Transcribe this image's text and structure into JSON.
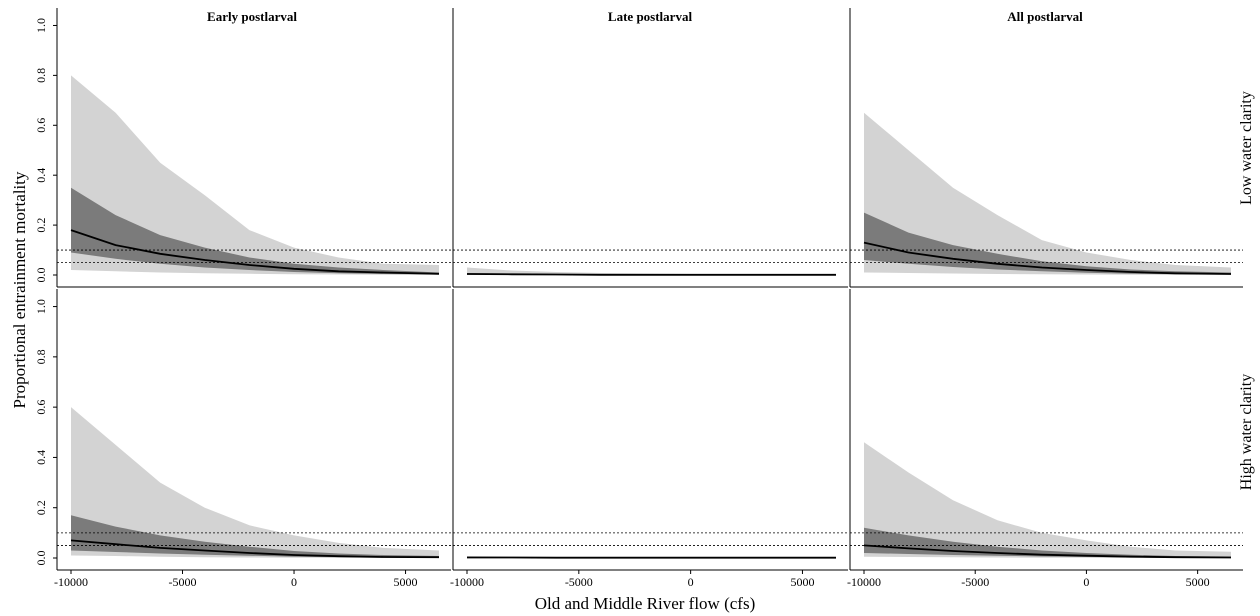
{
  "chart_data": {
    "type": "area",
    "panel_columns": [
      "Early postlarval",
      "Late postlarval",
      "All postlarval"
    ],
    "panel_rows": [
      "Low water clarity",
      "High water clarity"
    ],
    "xlabel": "Old and Middle River flow (cfs)",
    "ylabel": "Proportional entrainment mortality",
    "xlim": [
      -10000,
      6500
    ],
    "ylim": [
      0,
      1.0
    ],
    "x_ticks": [
      "-10000",
      "-5000",
      "0",
      "5000"
    ],
    "y_ticks": [
      "0.0",
      "0.2",
      "0.4",
      "0.6",
      "0.8",
      "1.0"
    ],
    "reference_lines": [
      0.05,
      0.1
    ],
    "colors": {
      "outer_band": "#d3d3d3",
      "inner_band": "#7b7b7b",
      "median": "#000000",
      "reference": "#000000"
    },
    "x": [
      -10000,
      -8000,
      -6000,
      -4000,
      -2000,
      0,
      2000,
      4000,
      6500
    ],
    "panels": [
      {
        "row": 0,
        "col": 0,
        "median": [
          0.18,
          0.12,
          0.085,
          0.06,
          0.04,
          0.025,
          0.015,
          0.01,
          0.005
        ],
        "inner_lo": [
          0.09,
          0.065,
          0.045,
          0.03,
          0.02,
          0.012,
          0.007,
          0.004,
          0.002
        ],
        "inner_hi": [
          0.35,
          0.24,
          0.16,
          0.11,
          0.07,
          0.045,
          0.03,
          0.02,
          0.01
        ],
        "outer_lo": [
          0.02,
          0.015,
          0.01,
          0.007,
          0.005,
          0.003,
          0.002,
          0.001,
          0.001
        ],
        "outer_hi": [
          0.8,
          0.65,
          0.45,
          0.32,
          0.18,
          0.11,
          0.07,
          0.045,
          0.04
        ]
      },
      {
        "row": 0,
        "col": 1,
        "median": [
          0.004,
          0.003,
          0.002,
          0.001,
          0.001,
          0.001,
          0.001,
          0.001,
          0.001
        ],
        "inner_lo": [
          0.002,
          0.002,
          0.001,
          0.001,
          0,
          0,
          0,
          0,
          0
        ],
        "inner_hi": [
          0.008,
          0.006,
          0.004,
          0.003,
          0.002,
          0.002,
          0.001,
          0.001,
          0.001
        ],
        "outer_lo": [
          0,
          0,
          0,
          0,
          0,
          0,
          0,
          0,
          0
        ],
        "outer_hi": [
          0.03,
          0.018,
          0.012,
          0.008,
          0.006,
          0.004,
          0.003,
          0.002,
          0.002
        ]
      },
      {
        "row": 0,
        "col": 2,
        "median": [
          0.13,
          0.09,
          0.065,
          0.045,
          0.03,
          0.02,
          0.012,
          0.007,
          0.004
        ],
        "inner_lo": [
          0.06,
          0.045,
          0.032,
          0.022,
          0.015,
          0.009,
          0.005,
          0.003,
          0.002
        ],
        "inner_hi": [
          0.25,
          0.17,
          0.12,
          0.085,
          0.055,
          0.035,
          0.022,
          0.015,
          0.01
        ],
        "outer_lo": [
          0.01,
          0.008,
          0.006,
          0.004,
          0.003,
          0.002,
          0.001,
          0.001,
          0.001
        ],
        "outer_hi": [
          0.65,
          0.5,
          0.35,
          0.24,
          0.14,
          0.09,
          0.06,
          0.04,
          0.03
        ]
      },
      {
        "row": 1,
        "col": 0,
        "median": [
          0.07,
          0.055,
          0.04,
          0.03,
          0.02,
          0.012,
          0.007,
          0.004,
          0.003
        ],
        "inner_lo": [
          0.03,
          0.024,
          0.018,
          0.013,
          0.009,
          0.005,
          0.003,
          0.002,
          0.001
        ],
        "inner_hi": [
          0.17,
          0.125,
          0.09,
          0.065,
          0.045,
          0.028,
          0.018,
          0.012,
          0.008
        ],
        "outer_lo": [
          0.01,
          0.008,
          0.005,
          0.003,
          0.002,
          0.001,
          0.001,
          0.001,
          0
        ],
        "outer_hi": [
          0.6,
          0.45,
          0.3,
          0.2,
          0.13,
          0.09,
          0.06,
          0.04,
          0.03
        ]
      },
      {
        "row": 1,
        "col": 1,
        "median": [
          0.002,
          0.002,
          0.001,
          0.001,
          0.001,
          0.001,
          0.001,
          0.001,
          0.001
        ],
        "inner_lo": [
          0.001,
          0.001,
          0,
          0,
          0,
          0,
          0,
          0,
          0
        ],
        "inner_hi": [
          0.004,
          0.003,
          0.002,
          0.002,
          0.001,
          0.001,
          0.001,
          0.001,
          0.001
        ],
        "outer_lo": [
          0,
          0,
          0,
          0,
          0,
          0,
          0,
          0,
          0
        ],
        "outer_hi": [
          0.008,
          0.006,
          0.004,
          0.003,
          0.002,
          0.002,
          0.001,
          0.001,
          0.001
        ]
      },
      {
        "row": 1,
        "col": 2,
        "median": [
          0.05,
          0.038,
          0.028,
          0.02,
          0.013,
          0.009,
          0.005,
          0.003,
          0.002
        ],
        "inner_lo": [
          0.02,
          0.016,
          0.012,
          0.009,
          0.006,
          0.004,
          0.002,
          0.001,
          0.001
        ],
        "inner_hi": [
          0.12,
          0.09,
          0.065,
          0.045,
          0.03,
          0.02,
          0.013,
          0.008,
          0.006
        ],
        "outer_lo": [
          0.005,
          0.004,
          0.003,
          0.002,
          0.001,
          0.001,
          0.001,
          0,
          0
        ],
        "outer_hi": [
          0.46,
          0.34,
          0.23,
          0.15,
          0.1,
          0.07,
          0.045,
          0.03,
          0.025
        ]
      }
    ]
  }
}
